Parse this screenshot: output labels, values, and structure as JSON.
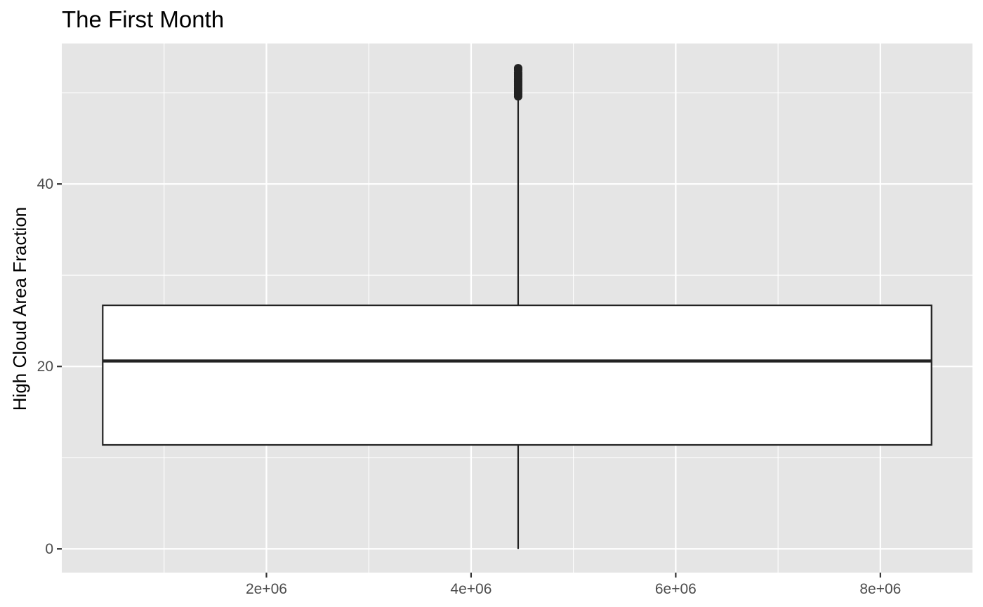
{
  "chart_data": {
    "type": "boxplot",
    "title": "The First Month",
    "xlabel": "",
    "ylabel": "High Cloud Area Fraction",
    "x_ticks": [
      2000000,
      4000000,
      6000000,
      8000000
    ],
    "x_tick_labels": [
      "2e+06",
      "4e+06",
      "6e+06",
      "8e+06"
    ],
    "y_ticks": [
      0,
      20,
      40
    ],
    "y_tick_labels": [
      "0",
      "20",
      "40"
    ],
    "xlim": [
      0,
      8900000
    ],
    "ylim": [
      -2.6,
      55.4
    ],
    "grid": true,
    "box": {
      "x_center": 4460000,
      "x_min": 400000,
      "x_max": 8500000,
      "whisker_low": 0,
      "q1": 11.4,
      "median": 20.6,
      "q3": 26.7,
      "whisker_high": 49.5,
      "outliers": [
        49.6,
        49.8,
        50.0,
        50.2,
        50.4,
        50.6,
        50.8,
        51.0,
        51.2,
        51.4,
        51.6,
        51.8,
        52.0,
        52.2,
        52.5,
        52.7
      ]
    },
    "colors": {
      "panel_background": "#e5e5e5",
      "gridline": "#ffffff",
      "box_fill": "#ffffff",
      "box_outline": "#222222"
    }
  }
}
